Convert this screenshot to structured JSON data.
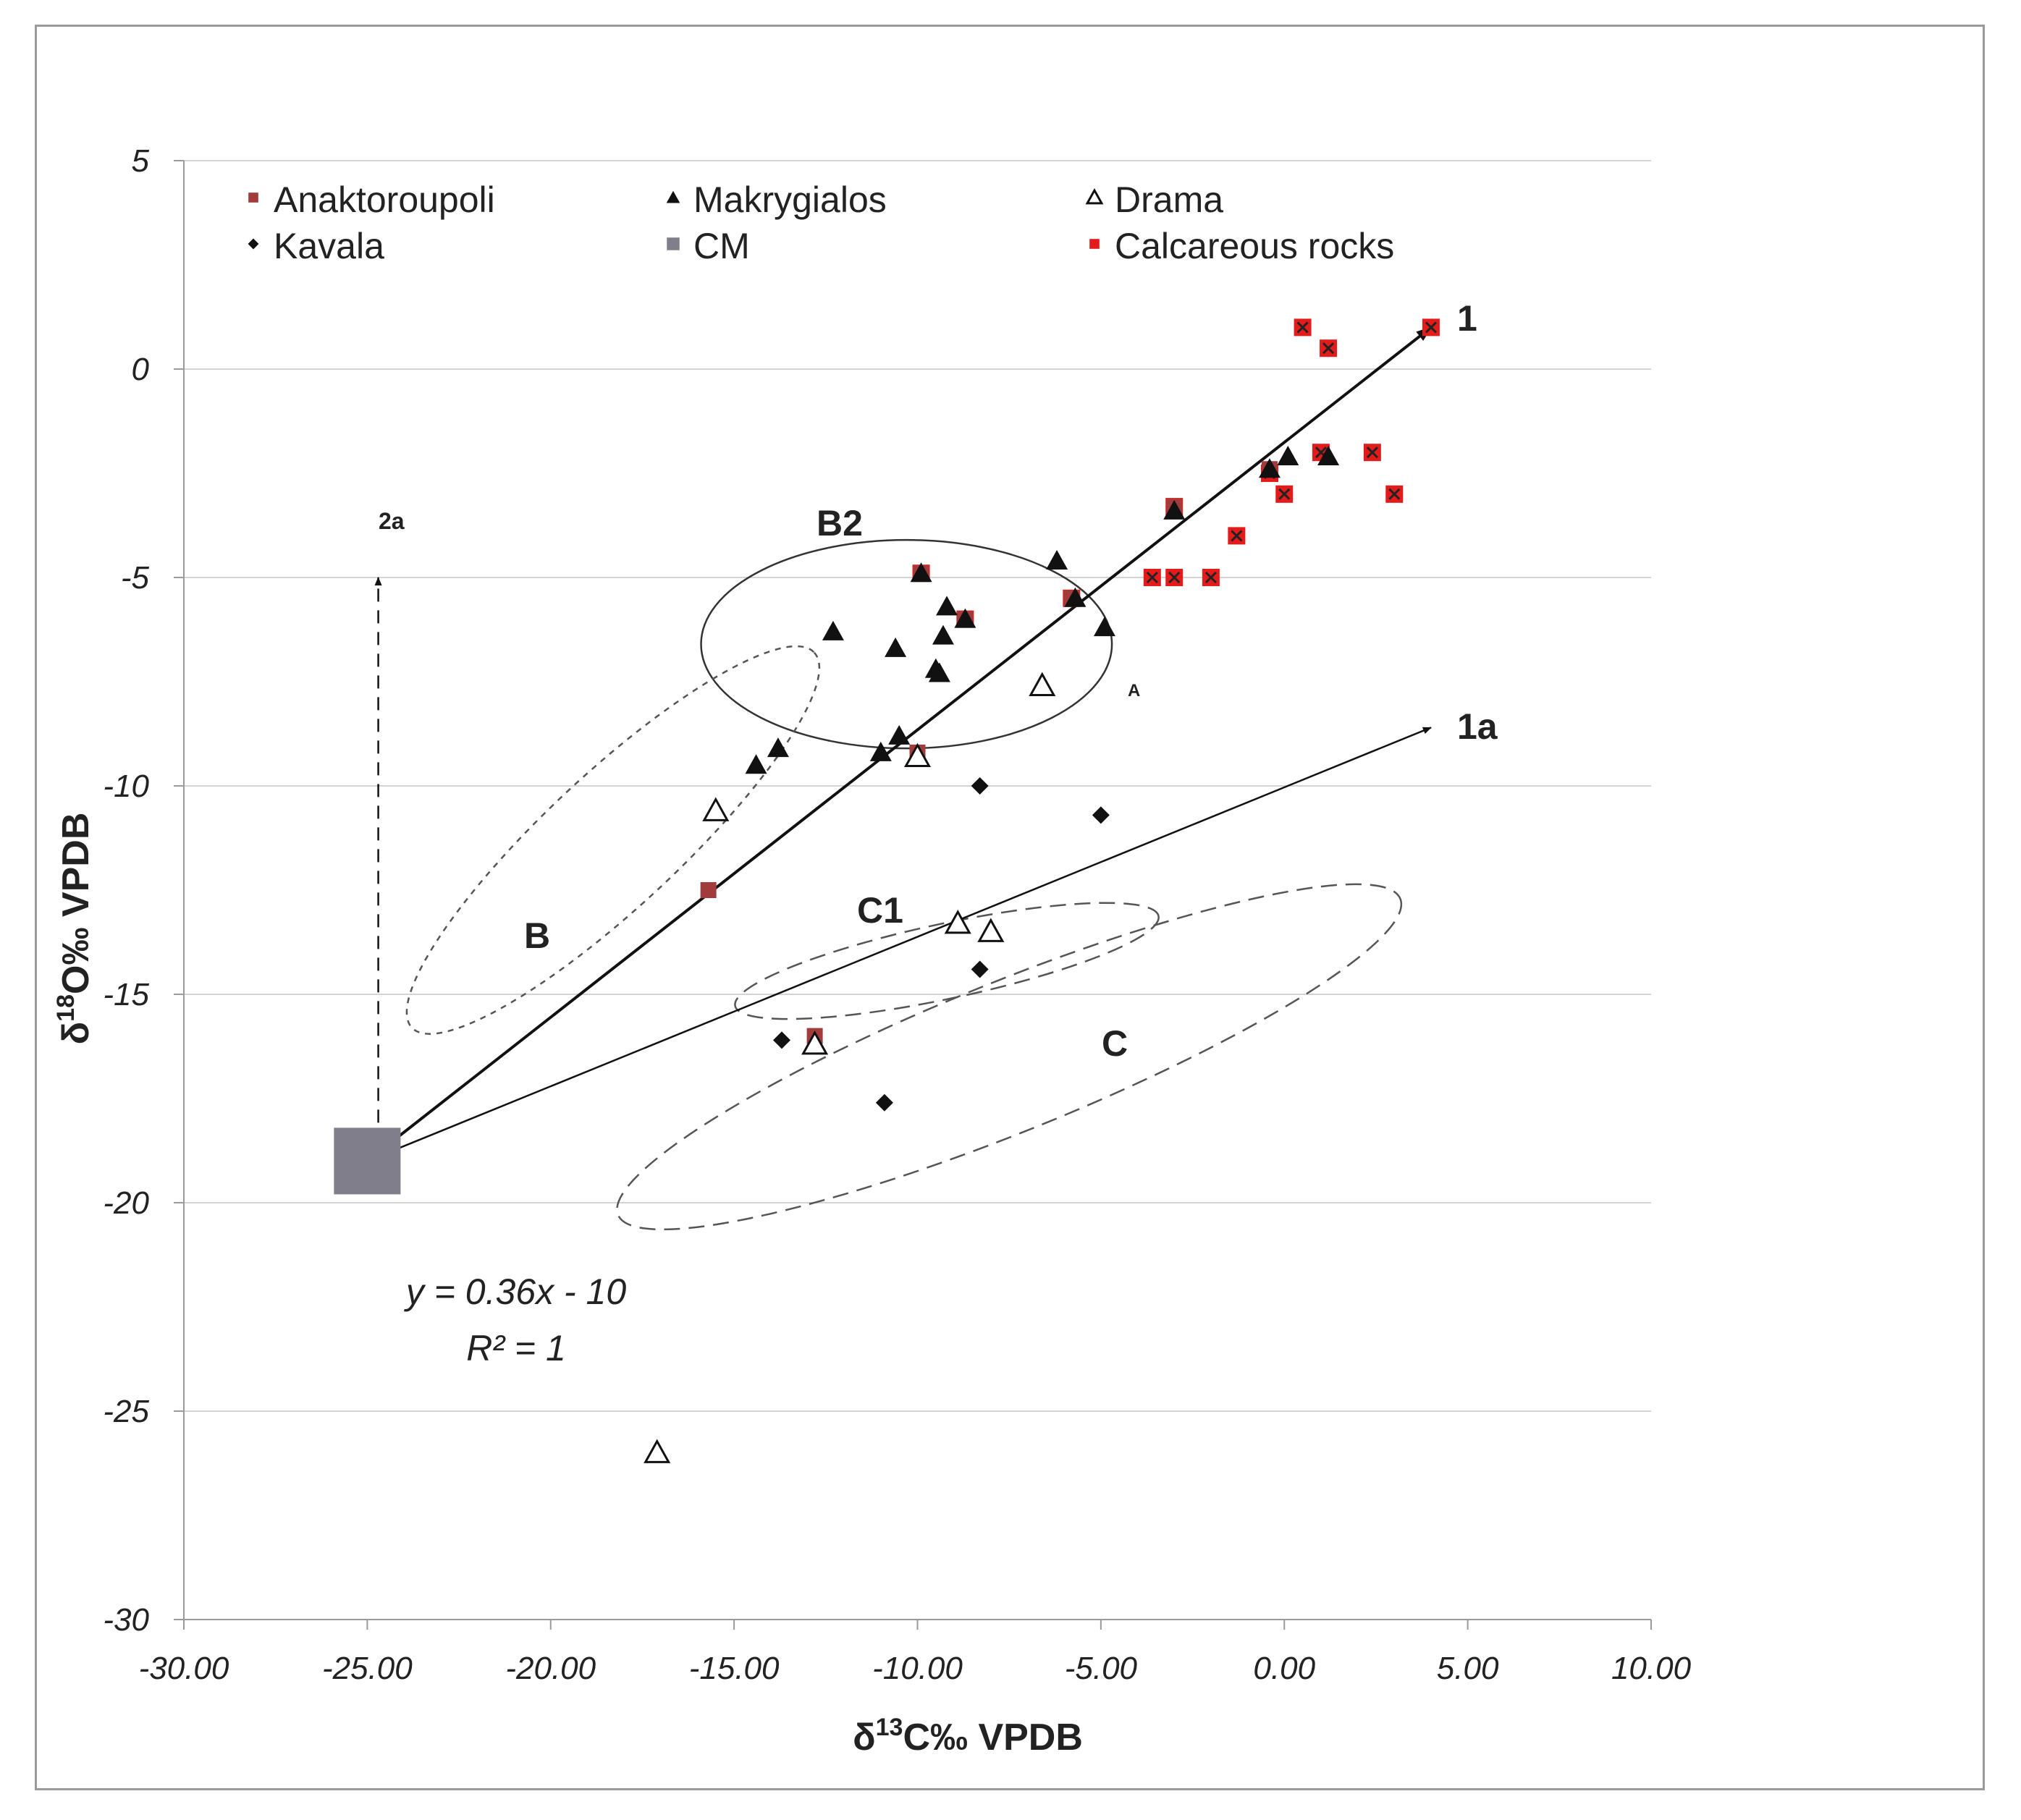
{
  "chart_data": {
    "type": "scatter",
    "title": "",
    "xlabel_main": "δ",
    "xlabel_sup": "13",
    "xlabel_rest": "C‰ VPDB",
    "ylabel_main": "δ",
    "ylabel_sup": "18",
    "ylabel_rest": "O‰ VPDB",
    "xlim": [
      -30,
      10
    ],
    "ylim": [
      -30,
      5
    ],
    "x_ticks": [
      -30,
      -25,
      -20,
      -15,
      -10,
      -5,
      0,
      5,
      10
    ],
    "x_tick_labels": [
      "-30.00",
      "-25.00",
      "-20.00",
      "-15.00",
      "-10.00",
      "-5.00",
      "0.00",
      "5.00",
      "10.00"
    ],
    "y_ticks": [
      5,
      0,
      -5,
      -10,
      -15,
      -20,
      -25,
      -30
    ],
    "y_tick_labels": [
      "5",
      "0",
      "-5",
      "-10",
      "-15",
      "-20",
      "-25",
      "-30"
    ],
    "legend_position": "top-left",
    "series": [
      {
        "name": "Anaktoroupoli",
        "marker": "square",
        "color": "#a23c3c",
        "points": [
          [
            -15.7,
            -12.5
          ],
          [
            -12.8,
            -16.0
          ],
          [
            -10.0,
            -9.2
          ],
          [
            -9.9,
            -4.9
          ],
          [
            -8.7,
            -6.0
          ],
          [
            -5.8,
            -5.5
          ],
          [
            -3.0,
            -3.3
          ],
          [
            -0.4,
            -2.4
          ]
        ]
      },
      {
        "name": "Makrygialos",
        "marker": "triangle",
        "color": "#111111",
        "points": [
          [
            -12.3,
            -6.3
          ],
          [
            -10.6,
            -6.7
          ],
          [
            -9.9,
            -4.9
          ],
          [
            -9.2,
            -5.7
          ],
          [
            -9.3,
            -6.4
          ],
          [
            -9.5,
            -7.2
          ],
          [
            -9.4,
            -7.3
          ],
          [
            -8.7,
            -6.0
          ],
          [
            -6.2,
            -4.6
          ],
          [
            -5.7,
            -5.5
          ],
          [
            -4.9,
            -6.2
          ],
          [
            -13.8,
            -9.1
          ],
          [
            -14.4,
            -9.5
          ],
          [
            -11.0,
            -9.2
          ],
          [
            -10.5,
            -8.8
          ],
          [
            -3.0,
            -3.4
          ],
          [
            -0.4,
            -2.4
          ],
          [
            0.1,
            -2.1
          ],
          [
            1.2,
            -2.1
          ]
        ]
      },
      {
        "name": "Drama",
        "marker": "triangle-open",
        "color": "#111111",
        "points": [
          [
            -15.5,
            -10.6
          ],
          [
            -10.0,
            -9.3
          ],
          [
            -6.6,
            -7.6
          ],
          [
            -8.9,
            -13.3
          ],
          [
            -8.0,
            -13.5
          ],
          [
            -12.8,
            -16.2
          ],
          [
            -17.1,
            -26.0
          ]
        ]
      },
      {
        "name": "Kavala",
        "marker": "diamond",
        "color": "#111111",
        "points": [
          [
            -8.3,
            -10.0
          ],
          [
            -5.0,
            -10.7
          ],
          [
            -8.3,
            -14.4
          ],
          [
            -13.7,
            -16.1
          ],
          [
            -10.9,
            -17.6
          ]
        ]
      },
      {
        "name": "CM",
        "marker": "big-square",
        "color": "#7f7e8a",
        "points": [
          [
            -25.0,
            -19.0
          ]
        ]
      },
      {
        "name": "Calcareous rocks",
        "marker": "square-x",
        "color": "#e31b1b",
        "points": [
          [
            0.5,
            1.0
          ],
          [
            1.2,
            0.5
          ],
          [
            4.0,
            1.0
          ],
          [
            1.0,
            -2.0
          ],
          [
            2.4,
            -2.0
          ],
          [
            3.0,
            -3.0
          ],
          [
            0.0,
            -3.0
          ],
          [
            -0.4,
            -2.5
          ],
          [
            -1.3,
            -4.0
          ],
          [
            -3.0,
            -3.3
          ],
          [
            -3.6,
            -5.0
          ],
          [
            -3.0,
            -5.0
          ],
          [
            -2.0,
            -5.0
          ],
          [
            -5.8,
            -5.5
          ],
          [
            -8.7,
            -6.0
          ],
          [
            -9.9,
            -4.9
          ]
        ]
      }
    ],
    "arrows": [
      {
        "label": "1",
        "from": [
          -25,
          -19
        ],
        "to": [
          4,
          1
        ],
        "style": "solid"
      },
      {
        "label": "1a",
        "from": [
          -25,
          -19
        ],
        "to": [
          4,
          -8.6
        ],
        "style": "solid"
      },
      {
        "label": "2a",
        "from": [
          -24.7,
          -18.6
        ],
        "to": [
          -24.7,
          -5
        ],
        "style": "dashed"
      }
    ],
    "regions": [
      {
        "label": "B2",
        "cx": -10.3,
        "cy": -6.6,
        "rx": 5.6,
        "ry": 2.5,
        "rotate": 0,
        "style": "solid"
      },
      {
        "label": "B",
        "cx": -18.3,
        "cy": -11.3,
        "rx": 7.5,
        "ry": 1.6,
        "rotate": -43,
        "style": "dotted"
      },
      {
        "label": "C1",
        "cx": -9.2,
        "cy": -14.2,
        "rx": 5.9,
        "ry": 0.9,
        "rotate": -12,
        "style": "dashed"
      },
      {
        "label": "C",
        "cx": -7.5,
        "cy": -16.5,
        "rx": 11.5,
        "ry": 1.8,
        "rotate": -22,
        "style": "dashed"
      }
    ],
    "annotations": {
      "label_1": "1",
      "label_1a": "1a",
      "label_2a": "2a",
      "label_b2": "B2",
      "label_b": "B",
      "label_c1": "C1",
      "label_c": "C",
      "label_a": "A",
      "equation": "y = 0.36x - 10",
      "r_squared": "R² = 1"
    }
  }
}
